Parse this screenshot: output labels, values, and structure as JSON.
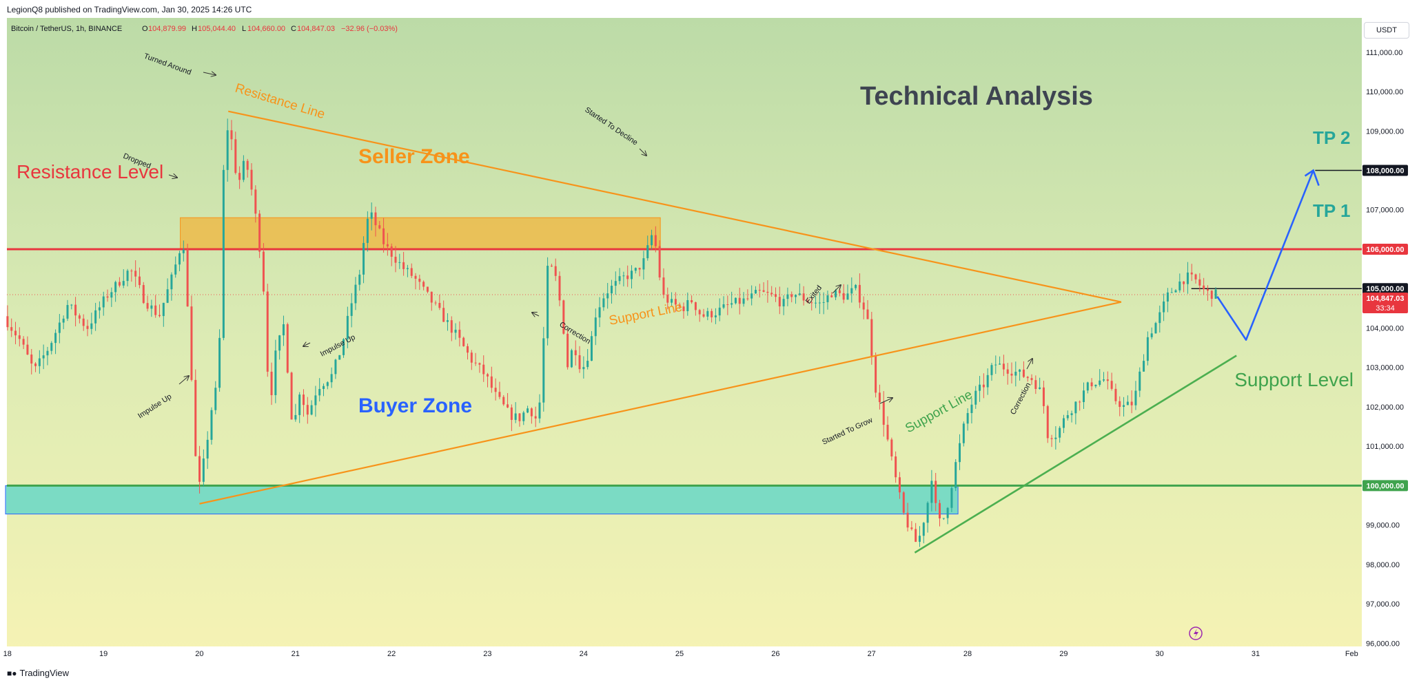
{
  "header": {
    "publisher": "LegionQ8 published on TradingView.com, Jan 30, 2025 14:26 UTC",
    "symbol": "Bitcoin / TetherUS, 1h, BINANCE",
    "o_label": "O",
    "o_value": "104,879.99",
    "h_label": "H",
    "h_value": "105,044.40",
    "l_label": "L",
    "l_value": "104,660.00",
    "c_label": "C",
    "c_value": "104,847.03",
    "change": "−32.96 (−0.03%)"
  },
  "currency": "USDT",
  "footer": {
    "brand": "TradingView"
  },
  "colors": {
    "up": "#26a69a",
    "down": "#ef5350",
    "resistance": "#e8363e",
    "support": "#3fa34d",
    "triangle": "#f7931a",
    "projection": "#2962ff",
    "seller_zone": "#f0b43c",
    "buyer_zone": "#5fd6c8"
  },
  "chart_data": {
    "type": "candlestick",
    "symbol": "Bitcoin / TetherUS",
    "interval": "1h",
    "exchange": "BINANCE",
    "title": "Technical Analysis",
    "ylim": [
      95500,
      111800
    ],
    "y_ticks": [
      96000,
      97000,
      98000,
      99000,
      100000,
      101000,
      102000,
      103000,
      104000,
      105000,
      106000,
      107000,
      108000,
      109000,
      110000,
      111000
    ],
    "y_tick_labels": [
      "96,000.00",
      "97,000.00",
      "98,000.00",
      "99,000.00",
      "100,000.00",
      "101,000.00",
      "102,000.00",
      "103,000.00",
      "104,000.00",
      "105,000.00",
      "106,000.00",
      "107,000.00",
      "108,000.00",
      "109,000.00",
      "110,000.00",
      "111,000.00"
    ],
    "x_ticks": [
      "18",
      "19",
      "20",
      "21",
      "22",
      "23",
      "24",
      "25",
      "26",
      "27",
      "28",
      "29",
      "30",
      "31",
      "Feb"
    ],
    "x_tick_positions": [
      18,
      19,
      20,
      21,
      22,
      23,
      24,
      25,
      26,
      27,
      28,
      29,
      30,
      31,
      32
    ],
    "xlim": [
      17.98,
      32.17
    ],
    "price_path": [
      [
        17.98,
        104300
      ],
      [
        18.15,
        103700
      ],
      [
        18.3,
        102900
      ],
      [
        18.45,
        103500
      ],
      [
        18.65,
        104600
      ],
      [
        18.85,
        104000
      ],
      [
        19.05,
        104800
      ],
      [
        19.3,
        105500
      ],
      [
        19.45,
        104700
      ],
      [
        19.6,
        104300
      ],
      [
        19.75,
        105400
      ],
      [
        19.85,
        106300
      ],
      [
        19.93,
        103200
      ],
      [
        20.0,
        99700
      ],
      [
        20.08,
        100800
      ],
      [
        20.15,
        102000
      ],
      [
        20.22,
        102700
      ],
      [
        20.28,
        108800
      ],
      [
        20.33,
        109200
      ],
      [
        20.42,
        107600
      ],
      [
        20.5,
        108300
      ],
      [
        20.58,
        107300
      ],
      [
        20.65,
        106000
      ],
      [
        20.7,
        104700
      ],
      [
        20.75,
        101800
      ],
      [
        20.8,
        103200
      ],
      [
        20.9,
        104100
      ],
      [
        21.0,
        101200
      ],
      [
        21.05,
        102500
      ],
      [
        21.15,
        101800
      ],
      [
        21.25,
        102500
      ],
      [
        21.4,
        102800
      ],
      [
        21.5,
        103500
      ],
      [
        21.6,
        104600
      ],
      [
        21.7,
        105500
      ],
      [
        21.75,
        106600
      ],
      [
        21.8,
        106900
      ],
      [
        21.88,
        106500
      ],
      [
        21.95,
        106100
      ],
      [
        22.05,
        105800
      ],
      [
        22.15,
        105500
      ],
      [
        22.25,
        105300
      ],
      [
        22.4,
        104800
      ],
      [
        22.55,
        104300
      ],
      [
        22.7,
        103800
      ],
      [
        22.85,
        103200
      ],
      [
        23.0,
        102800
      ],
      [
        23.1,
        102300
      ],
      [
        23.25,
        101800
      ],
      [
        23.35,
        101700
      ],
      [
        23.45,
        102000
      ],
      [
        23.55,
        101600
      ],
      [
        23.6,
        103500
      ],
      [
        23.65,
        105600
      ],
      [
        23.72,
        105400
      ],
      [
        23.8,
        104300
      ],
      [
        23.85,
        103000
      ],
      [
        23.92,
        103600
      ],
      [
        24.0,
        102900
      ],
      [
        24.08,
        103400
      ],
      [
        24.15,
        104400
      ],
      [
        24.25,
        104900
      ],
      [
        24.35,
        105100
      ],
      [
        24.45,
        105300
      ],
      [
        24.55,
        105400
      ],
      [
        24.65,
        105700
      ],
      [
        24.7,
        106100
      ],
      [
        24.75,
        106500
      ],
      [
        24.8,
        105500
      ],
      [
        24.85,
        104800
      ],
      [
        24.95,
        104600
      ],
      [
        25.05,
        104500
      ],
      [
        25.15,
        104700
      ],
      [
        25.25,
        104300
      ],
      [
        25.4,
        104400
      ],
      [
        25.55,
        104600
      ],
      [
        25.7,
        104700
      ],
      [
        25.85,
        104900
      ],
      [
        26.0,
        104800
      ],
      [
        26.1,
        104600
      ],
      [
        26.2,
        104900
      ],
      [
        26.35,
        104700
      ],
      [
        26.5,
        104600
      ],
      [
        26.6,
        104900
      ],
      [
        26.75,
        104800
      ],
      [
        26.85,
        105000
      ],
      [
        26.93,
        104600
      ],
      [
        27.0,
        104000
      ],
      [
        27.05,
        102600
      ],
      [
        27.15,
        101600
      ],
      [
        27.25,
        100400
      ],
      [
        27.35,
        99300
      ],
      [
        27.45,
        98700
      ],
      [
        27.5,
        98500
      ],
      [
        27.6,
        99500
      ],
      [
        27.65,
        100300
      ],
      [
        27.7,
        99200
      ],
      [
        27.75,
        99000
      ],
      [
        27.82,
        99600
      ],
      [
        27.9,
        100600
      ],
      [
        28.0,
        101700
      ],
      [
        28.1,
        102300
      ],
      [
        28.2,
        102600
      ],
      [
        28.3,
        103100
      ],
      [
        28.4,
        103000
      ],
      [
        28.5,
        102900
      ],
      [
        28.6,
        102800
      ],
      [
        28.7,
        102700
      ],
      [
        28.8,
        102300
      ],
      [
        28.85,
        101300
      ],
      [
        28.95,
        101300
      ],
      [
        29.05,
        101800
      ],
      [
        29.15,
        102100
      ],
      [
        29.3,
        102600
      ],
      [
        29.45,
        102700
      ],
      [
        29.55,
        102200
      ],
      [
        29.65,
        102000
      ],
      [
        29.75,
        102100
      ],
      [
        29.82,
        102900
      ],
      [
        29.9,
        103800
      ],
      [
        30.0,
        104200
      ],
      [
        30.1,
        104800
      ],
      [
        30.2,
        105100
      ],
      [
        30.3,
        105300
      ],
      [
        30.4,
        105200
      ],
      [
        30.5,
        104900
      ],
      [
        30.6,
        104850
      ]
    ],
    "last_price": 104847.03,
    "last_price_label": "104,847.03",
    "countdown": "33:34",
    "levels": [
      {
        "name": "Resistance Level",
        "price": 106000,
        "label": "106,000.00"
      },
      {
        "name": "Support Level",
        "price": 100000,
        "label": "100,000.00"
      },
      {
        "name": "TP 1",
        "price": 105000,
        "label": "105,000.00"
      },
      {
        "name": "TP 2",
        "price": 108000,
        "label": "108,000.00"
      }
    ],
    "zones": [
      {
        "name": "Seller Zone",
        "x0": 19.8,
        "x1": 24.8,
        "y0": 106000,
        "y1": 106800
      },
      {
        "name": "Buyer Zone",
        "x0": 17.98,
        "x1": 27.9,
        "y0": 99280,
        "y1": 100000
      }
    ],
    "resistance_line": {
      "label": "Resistance Line",
      "from": [
        20.3,
        109500
      ],
      "to": [
        29.6,
        104660
      ]
    },
    "triangle_support_line": {
      "label": "Support Line",
      "from": [
        20.0,
        99540
      ],
      "to": [
        29.6,
        104660
      ]
    },
    "rising_support_line": {
      "label": "Support Line",
      "from": [
        27.45,
        98300
      ],
      "to": [
        30.8,
        103300
      ]
    },
    "projection": {
      "points": [
        [
          30.6,
          104800
        ],
        [
          30.9,
          103700
        ],
        [
          31.6,
          108000
        ]
      ]
    },
    "annotations": {
      "main_title": "Technical Analysis",
      "resistance_level_label": "Resistance Level",
      "support_level_label": "Support Level",
      "seller_zone_label": "Seller Zone",
      "buyer_zone_label": "Buyer Zone",
      "resistance_line_label": "Resistance Line",
      "support_line_label": "Support Line",
      "support_line_green_label": "Support Line",
      "tp1_label": "TP 1",
      "tp2_label": "TP 2",
      "turned_around": "Turned Around",
      "dropped": "Dropped",
      "impulse_up_1": "Impulse Up",
      "impulse_up_2": "Impulse Up",
      "started_to_decline": "Started To Decline",
      "correction_1": "Correction",
      "exited": "Exited",
      "started_to_grow": "Started To Grow",
      "correction_2": "Correction"
    }
  }
}
